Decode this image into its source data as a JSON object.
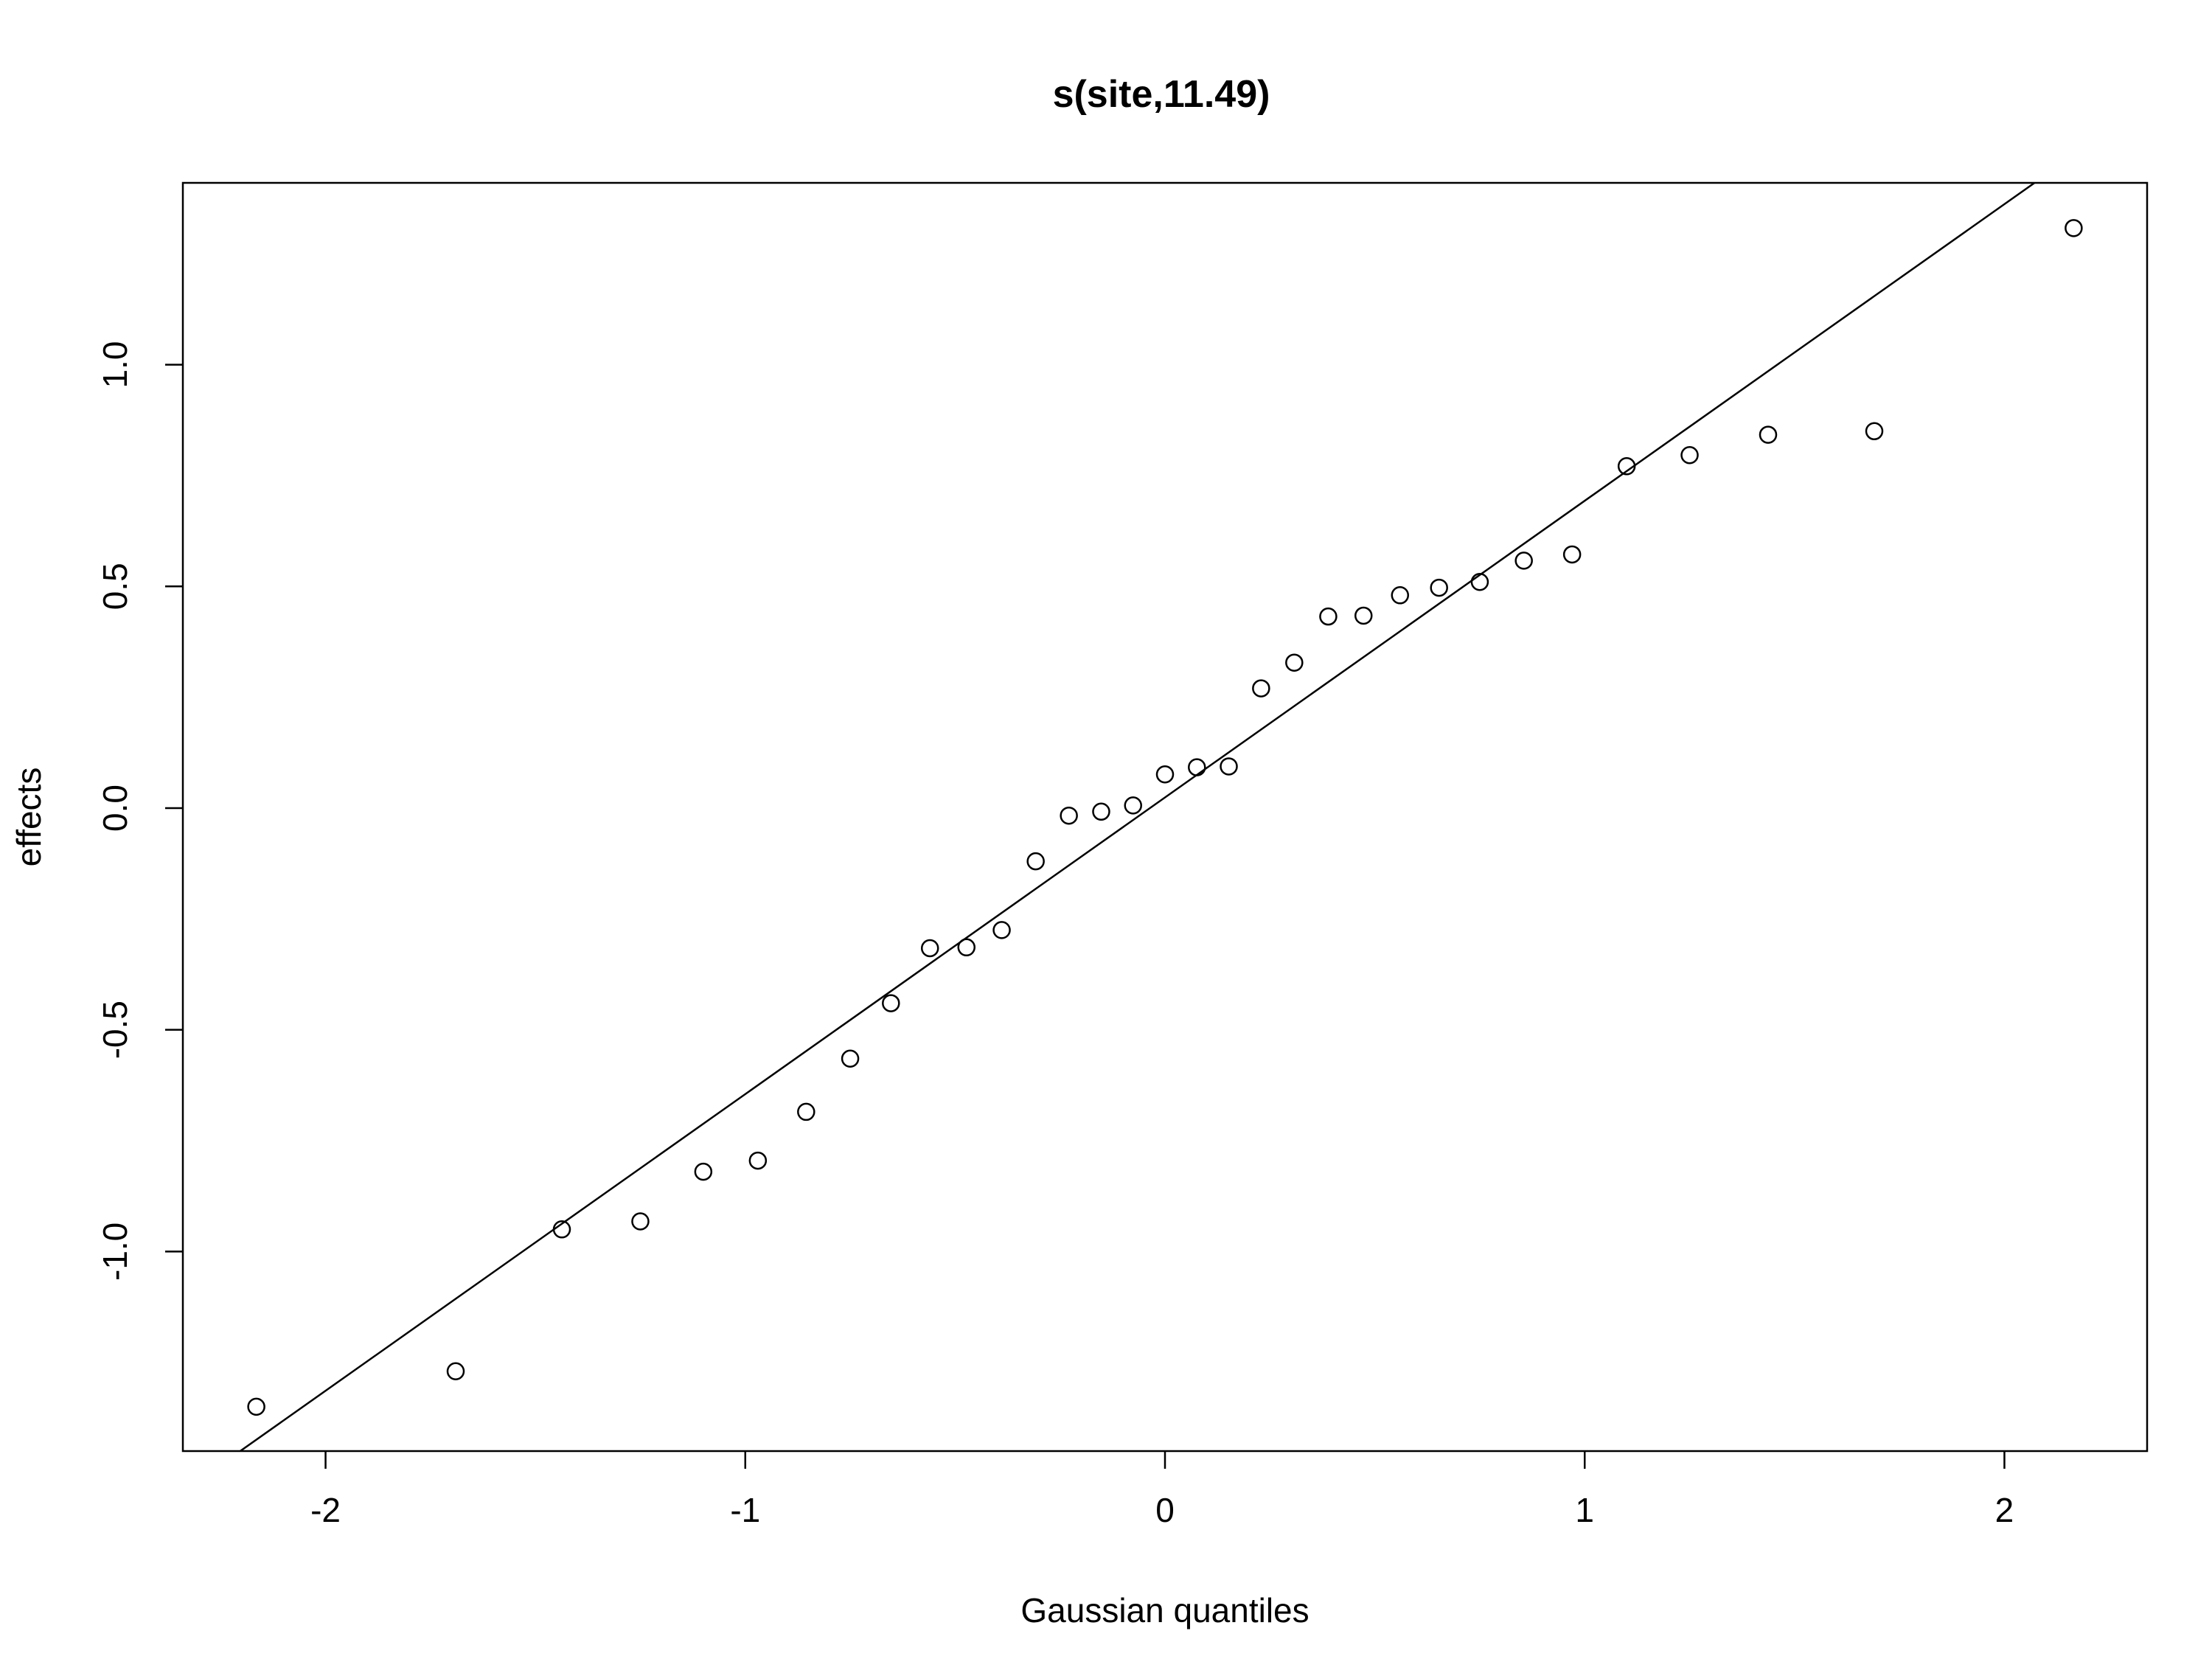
{
  "chart_data": {
    "type": "scatter",
    "title": "s(site,11.49)",
    "xlabel": "Gaussian quantiles",
    "ylabel": "effects",
    "xlim": [
      -2.34,
      2.34
    ],
    "ylim": [
      -1.45,
      1.41
    ],
    "xticks": [
      -2,
      -1,
      0,
      1,
      2
    ],
    "xtick_labels": [
      "-2",
      "-1",
      "0",
      "1",
      "2"
    ],
    "yticks": [
      -1.0,
      -0.5,
      0.0,
      0.5,
      1.0
    ],
    "ytick_labels": [
      "-1.0",
      "-0.5",
      "0.0",
      "0.5",
      "1.0"
    ],
    "grid": false,
    "legend": "none",
    "point_style": "open-circle",
    "reference_line": {
      "slope": 0.669,
      "intercept": 0.024
    },
    "points": [
      {
        "x": -2.165,
        "y": -1.35
      },
      {
        "x": -1.69,
        "y": -1.27
      },
      {
        "x": -1.437,
        "y": -0.95
      },
      {
        "x": -1.25,
        "y": -0.932
      },
      {
        "x": -1.1,
        "y": -0.82
      },
      {
        "x": -0.97,
        "y": -0.795
      },
      {
        "x": -0.855,
        "y": -0.685
      },
      {
        "x": -0.75,
        "y": -0.565
      },
      {
        "x": -0.653,
        "y": -0.44
      },
      {
        "x": -0.56,
        "y": -0.316
      },
      {
        "x": -0.473,
        "y": -0.314
      },
      {
        "x": -0.389,
        "y": -0.275
      },
      {
        "x": -0.308,
        "y": -0.12
      },
      {
        "x": -0.229,
        "y": -0.017
      },
      {
        "x": -0.152,
        "y": -0.008
      },
      {
        "x": -0.076,
        "y": 0.006
      },
      {
        "x": 0.0,
        "y": 0.076
      },
      {
        "x": 0.076,
        "y": 0.092
      },
      {
        "x": 0.152,
        "y": 0.094
      },
      {
        "x": 0.229,
        "y": 0.27
      },
      {
        "x": 0.308,
        "y": 0.328
      },
      {
        "x": 0.389,
        "y": 0.432
      },
      {
        "x": 0.473,
        "y": 0.434
      },
      {
        "x": 0.56,
        "y": 0.48
      },
      {
        "x": 0.653,
        "y": 0.497
      },
      {
        "x": 0.75,
        "y": 0.51
      },
      {
        "x": 0.855,
        "y": 0.558
      },
      {
        "x": 0.97,
        "y": 0.572
      },
      {
        "x": 1.1,
        "y": 0.771
      },
      {
        "x": 1.25,
        "y": 0.796
      },
      {
        "x": 1.437,
        "y": 0.842
      },
      {
        "x": 1.69,
        "y": 0.85
      },
      {
        "x": 2.165,
        "y": 1.308
      }
    ]
  }
}
